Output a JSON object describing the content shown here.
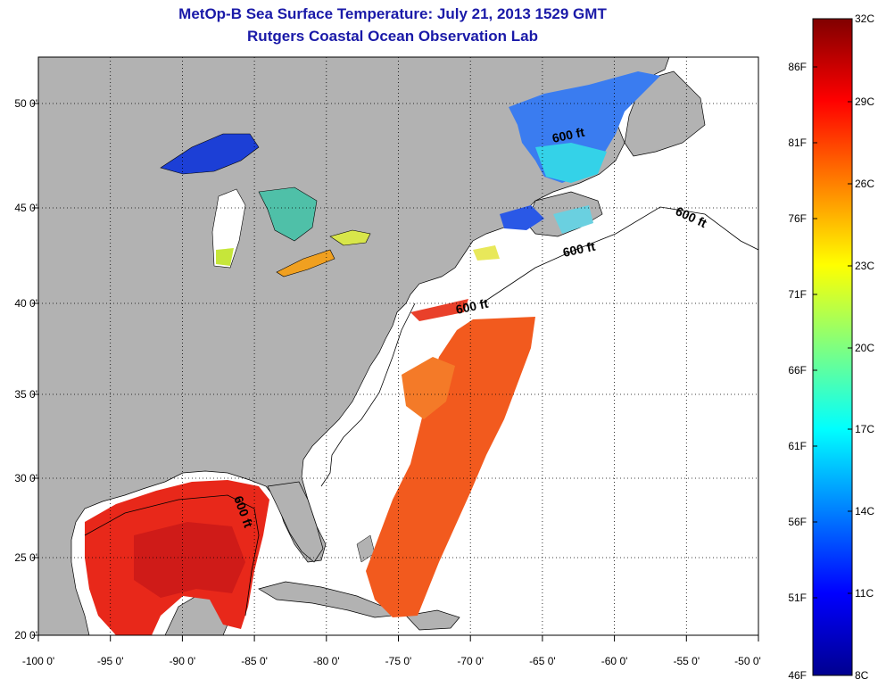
{
  "title": {
    "line1": "MetOp-B Sea Surface Temperature:  July 21, 2013 1529 GMT",
    "line2": "Rutgers Coastal Ocean Observation Lab"
  },
  "map": {
    "x_ticks": [
      "-100 0'",
      "-95 0'",
      "-90 0'",
      "-85 0'",
      "-80 0'",
      "-75 0'",
      "-70 0'",
      "-65 0'",
      "-60 0'",
      "-55 0'",
      "-50 0'"
    ],
    "y_ticks": [
      "50 0'",
      "45 0'",
      "40 0'",
      "35 0'",
      "30 0'",
      "25 0'",
      "20 0'"
    ],
    "lon_range": [
      -100,
      -50
    ],
    "lat_range": [
      20,
      52.5
    ],
    "grid": "dotted",
    "contour_label": "600 ft",
    "colors": {
      "land": "#b2b2b2",
      "no_data_ocean": "#ffffff",
      "gulf_sst": "#e8281a",
      "atlantic_sst": "#f25a1e",
      "great_lakes_cold": "#1c3fd6",
      "gulf_of_st_lawrence": "#3a7cf0"
    }
  },
  "colorbar": {
    "fahrenheit_labels": [
      "86F",
      "81F",
      "76F",
      "71F",
      "66F",
      "61F",
      "56F",
      "51F",
      "46F"
    ],
    "celsius_labels": [
      "32C",
      "29C",
      "26C",
      "23C",
      "20C",
      "17C",
      "14C",
      "11C",
      "8C"
    ],
    "colormap": "jet"
  }
}
